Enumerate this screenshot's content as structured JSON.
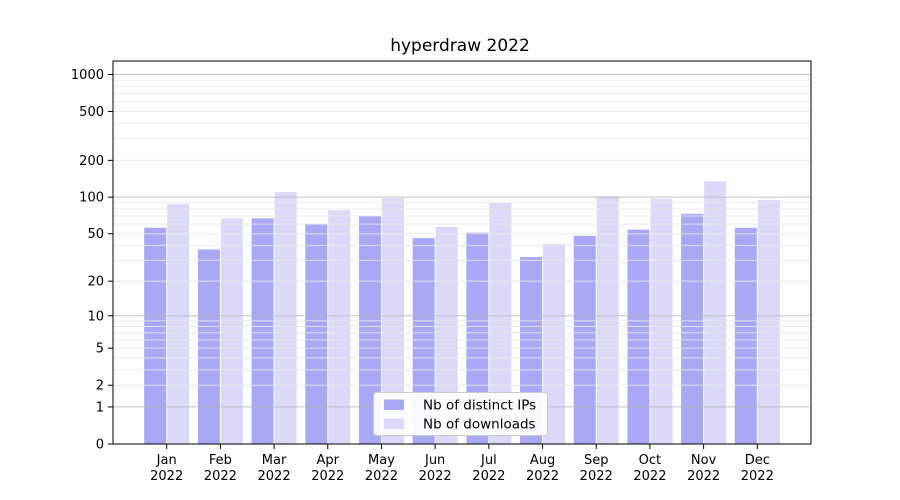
{
  "chart_data": {
    "type": "bar",
    "title": "hyperdraw 2022",
    "categories": [
      "Jan",
      "Feb",
      "Mar",
      "Apr",
      "May",
      "Jun",
      "Jul",
      "Aug",
      "Sep",
      "Oct",
      "Nov",
      "Dec"
    ],
    "year_sublabel": "2022",
    "series": [
      {
        "name": "Nb of distinct IPs",
        "color": "#a8a8f4",
        "values": [
          56,
          37,
          67,
          60,
          70,
          46,
          51,
          32,
          48,
          54,
          73,
          56
        ]
      },
      {
        "name": "Nb of downloads",
        "color": "#dadaf8",
        "values": [
          88,
          67,
          110,
          78,
          98,
          57,
          90,
          41,
          102,
          97,
          135,
          95
        ]
      }
    ],
    "yscale": "symlog",
    "yticks": [
      1000,
      500,
      200,
      100,
      50,
      20,
      10,
      5,
      2,
      1,
      0
    ],
    "ylim": [
      0,
      1300
    ],
    "xlabel": "",
    "ylabel": "",
    "grid": "on",
    "legend_position": "lower center",
    "colors": {
      "axis": "#000000",
      "grid_major": "#b5b5b5",
      "grid_minor": "#e8e8e8",
      "legend_border": "#cccccc",
      "legend_bg": "#ffffff"
    }
  }
}
